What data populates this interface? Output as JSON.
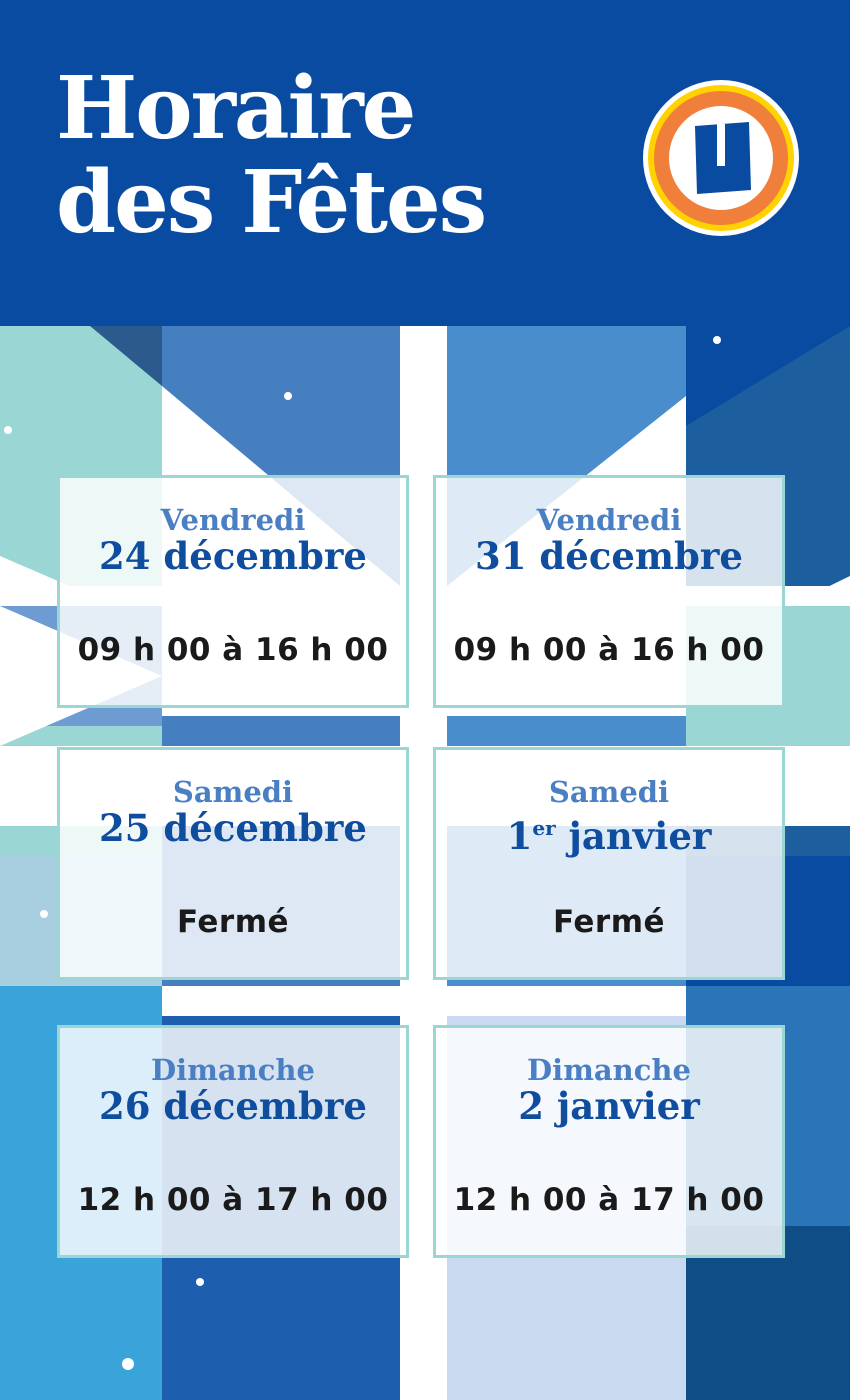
{
  "header": {
    "title_line1": "Horaire",
    "title_line2": "des Fêtes",
    "logo": "U"
  },
  "colors": {
    "header_blue": "#084ba0",
    "card_border": "#9ad6d4",
    "day_color": "#4a7fc4",
    "date_color": "#0f4d9e",
    "logo_orange": "#f07f3c",
    "logo_yellow": "#ffd200"
  },
  "schedule": [
    {
      "day": "Vendredi",
      "date": "24 décembre",
      "hours": "09 h 00 à 16 h 00"
    },
    {
      "day": "Vendredi",
      "date": "31 décembre",
      "hours": "09 h 00 à 16 h 00"
    },
    {
      "day": "Samedi",
      "date": "25 décembre",
      "hours": "Fermé"
    },
    {
      "day": "Samedi",
      "date_num": "1",
      "date_sup": "er",
      "date_rest": " janvier",
      "hours": "Fermé"
    },
    {
      "day": "Dimanche",
      "date": "26 décembre",
      "hours": "12 h 00 à 17 h 00"
    },
    {
      "day": "Dimanche",
      "date": "2 janvier",
      "hours": "12 h 00 à 17 h 00"
    }
  ]
}
